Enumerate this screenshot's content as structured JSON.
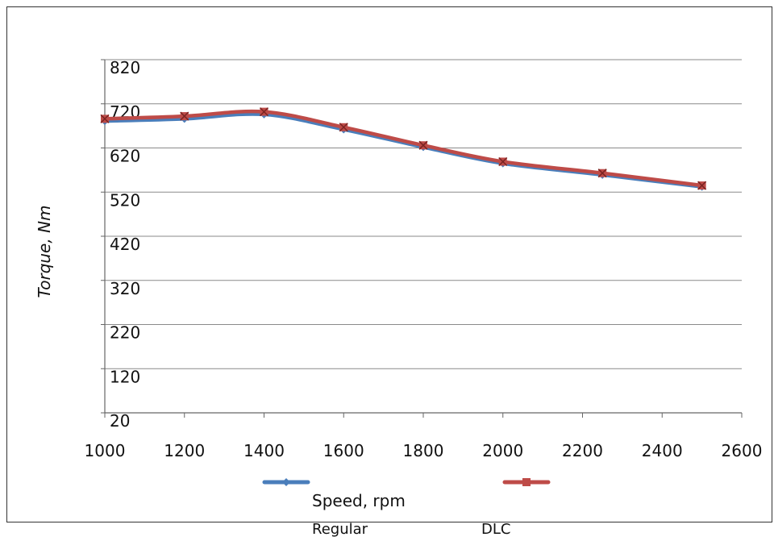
{
  "chart_data": {
    "type": "line",
    "xlabel": "Speed, rpm",
    "ylabel": "Torque, Nm",
    "xlim": [
      1000,
      2600
    ],
    "ylim": [
      20,
      820
    ],
    "x_ticks": [
      "1000",
      "1200",
      "1400",
      "1600",
      "1800",
      "2000",
      "2200",
      "2400",
      "2600"
    ],
    "y_ticks": [
      "820",
      "720",
      "620",
      "520",
      "420",
      "320",
      "220",
      "120",
      "20"
    ],
    "grid": true,
    "legend_position": "bottom",
    "series": [
      {
        "name": "Regular",
        "color": "#4a7ebb",
        "marker": "diamond",
        "x": [
          1000,
          1200,
          1400,
          1600,
          1800,
          2000,
          2250,
          2500
        ],
        "y": [
          681,
          686,
          696,
          662,
          622,
          585,
          559,
          532
        ]
      },
      {
        "name": "DLC",
        "color": "#be4b48",
        "marker": "x",
        "x": [
          1000,
          1200,
          1400,
          1600,
          1800,
          2000,
          2250,
          2500
        ],
        "y": [
          686,
          692,
          702,
          667,
          626,
          589,
          563,
          535
        ]
      }
    ]
  }
}
